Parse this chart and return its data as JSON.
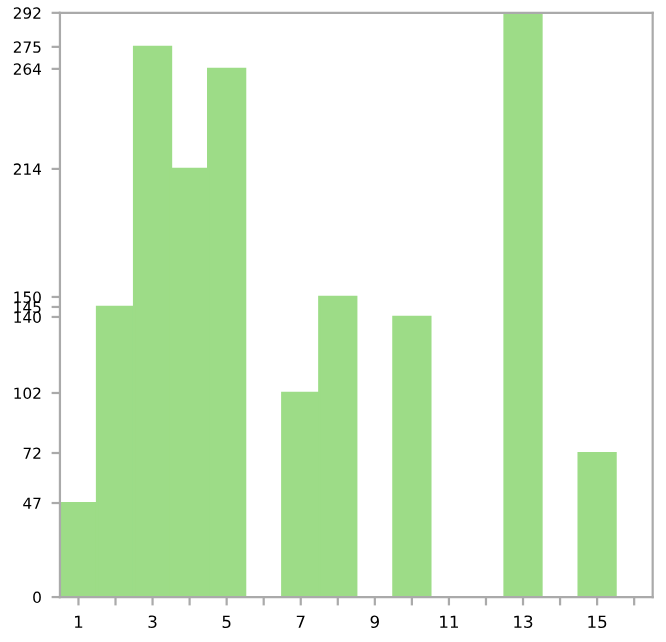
{
  "chart_data": {
    "type": "bar",
    "categories": [
      "1",
      null,
      "3",
      null,
      "5",
      null,
      "7",
      null,
      "9",
      null,
      "11",
      null,
      "13",
      null,
      "15",
      null
    ],
    "values": [
      47,
      145,
      275,
      214,
      264,
      0,
      102,
      150,
      0,
      140,
      0,
      0,
      292,
      0,
      72,
      0
    ],
    "color": "#9ddc87",
    "ylim": [
      0,
      292
    ],
    "yticks": [
      0,
      47,
      72,
      102,
      140,
      145,
      150,
      214,
      264,
      275,
      292
    ],
    "grid": false
  }
}
